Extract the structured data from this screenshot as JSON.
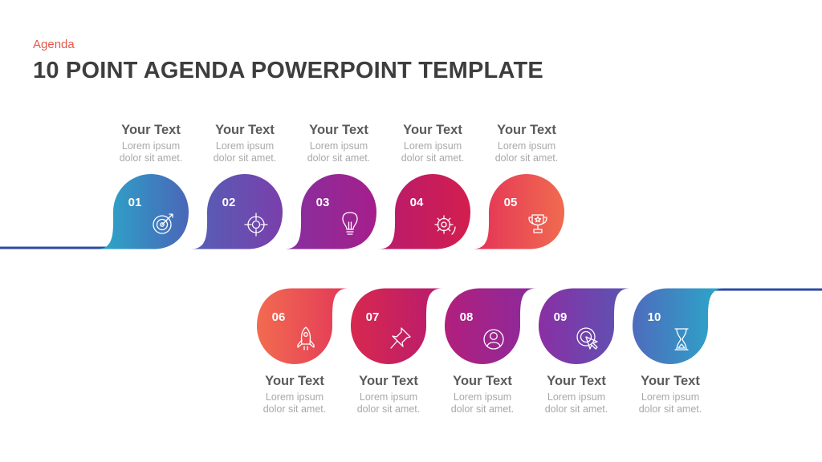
{
  "header": {
    "subtitle": "Agenda",
    "title": "10 POINT AGENDA POWERPOINT TEMPLATE"
  },
  "items": [
    {
      "number": "01",
      "heading": "Your Text",
      "line1": "Lorem ipsum",
      "line2": "dolor sit amet.",
      "icon": "target-icon",
      "colors": [
        "#2aa9c9",
        "#4a66b8"
      ]
    },
    {
      "number": "02",
      "heading": "Your Text",
      "line1": "Lorem ipsum",
      "line2": "dolor sit amet.",
      "icon": "crosshair-icon",
      "colors": [
        "#5360b6",
        "#7a3fab"
      ]
    },
    {
      "number": "03",
      "heading": "Your Text",
      "line1": "Lorem ipsum",
      "line2": "dolor sit amet.",
      "icon": "lightbulb-icon",
      "colors": [
        "#86309f",
        "#a51e8c"
      ]
    },
    {
      "number": "04",
      "heading": "Your Text",
      "line1": "Lorem ipsum",
      "line2": "dolor sit amet.",
      "icon": "gear-refresh-icon",
      "colors": [
        "#b81b6e",
        "#d21e4e"
      ]
    },
    {
      "number": "05",
      "heading": "Your Text",
      "line1": "Lorem ipsum",
      "line2": "dolor sit amet.",
      "icon": "trophy-icon",
      "colors": [
        "#e43158",
        "#f06b4f"
      ]
    },
    {
      "number": "06",
      "heading": "Your Text",
      "line1": "Lorem ipsum",
      "line2": "dolor sit amet.",
      "icon": "rocket-icon",
      "colors": [
        "#f26b50",
        "#e23858"
      ]
    },
    {
      "number": "07",
      "heading": "Your Text",
      "line1": "Lorem ipsum",
      "line2": "dolor sit amet.",
      "icon": "pushpin-icon",
      "colors": [
        "#d8284f",
        "#b81b6e"
      ]
    },
    {
      "number": "08",
      "heading": "Your Text",
      "line1": "Lorem ipsum",
      "line2": "dolor sit amet.",
      "icon": "user-icon",
      "colors": [
        "#b21f7c",
        "#8a2a9d"
      ]
    },
    {
      "number": "09",
      "heading": "Your Text",
      "line1": "Lorem ipsum",
      "line2": "dolor sit amet.",
      "icon": "click-target-icon",
      "colors": [
        "#8a2fa4",
        "#5a55b4"
      ]
    },
    {
      "number": "10",
      "heading": "Your Text",
      "line1": "Lorem ipsum",
      "line2": "dolor sit amet.",
      "icon": "hourglass-icon",
      "colors": [
        "#4e6cbd",
        "#2aa9c9"
      ]
    }
  ],
  "line_colors": {
    "start": "#2e4aa8",
    "end": "#2e4aa8"
  }
}
